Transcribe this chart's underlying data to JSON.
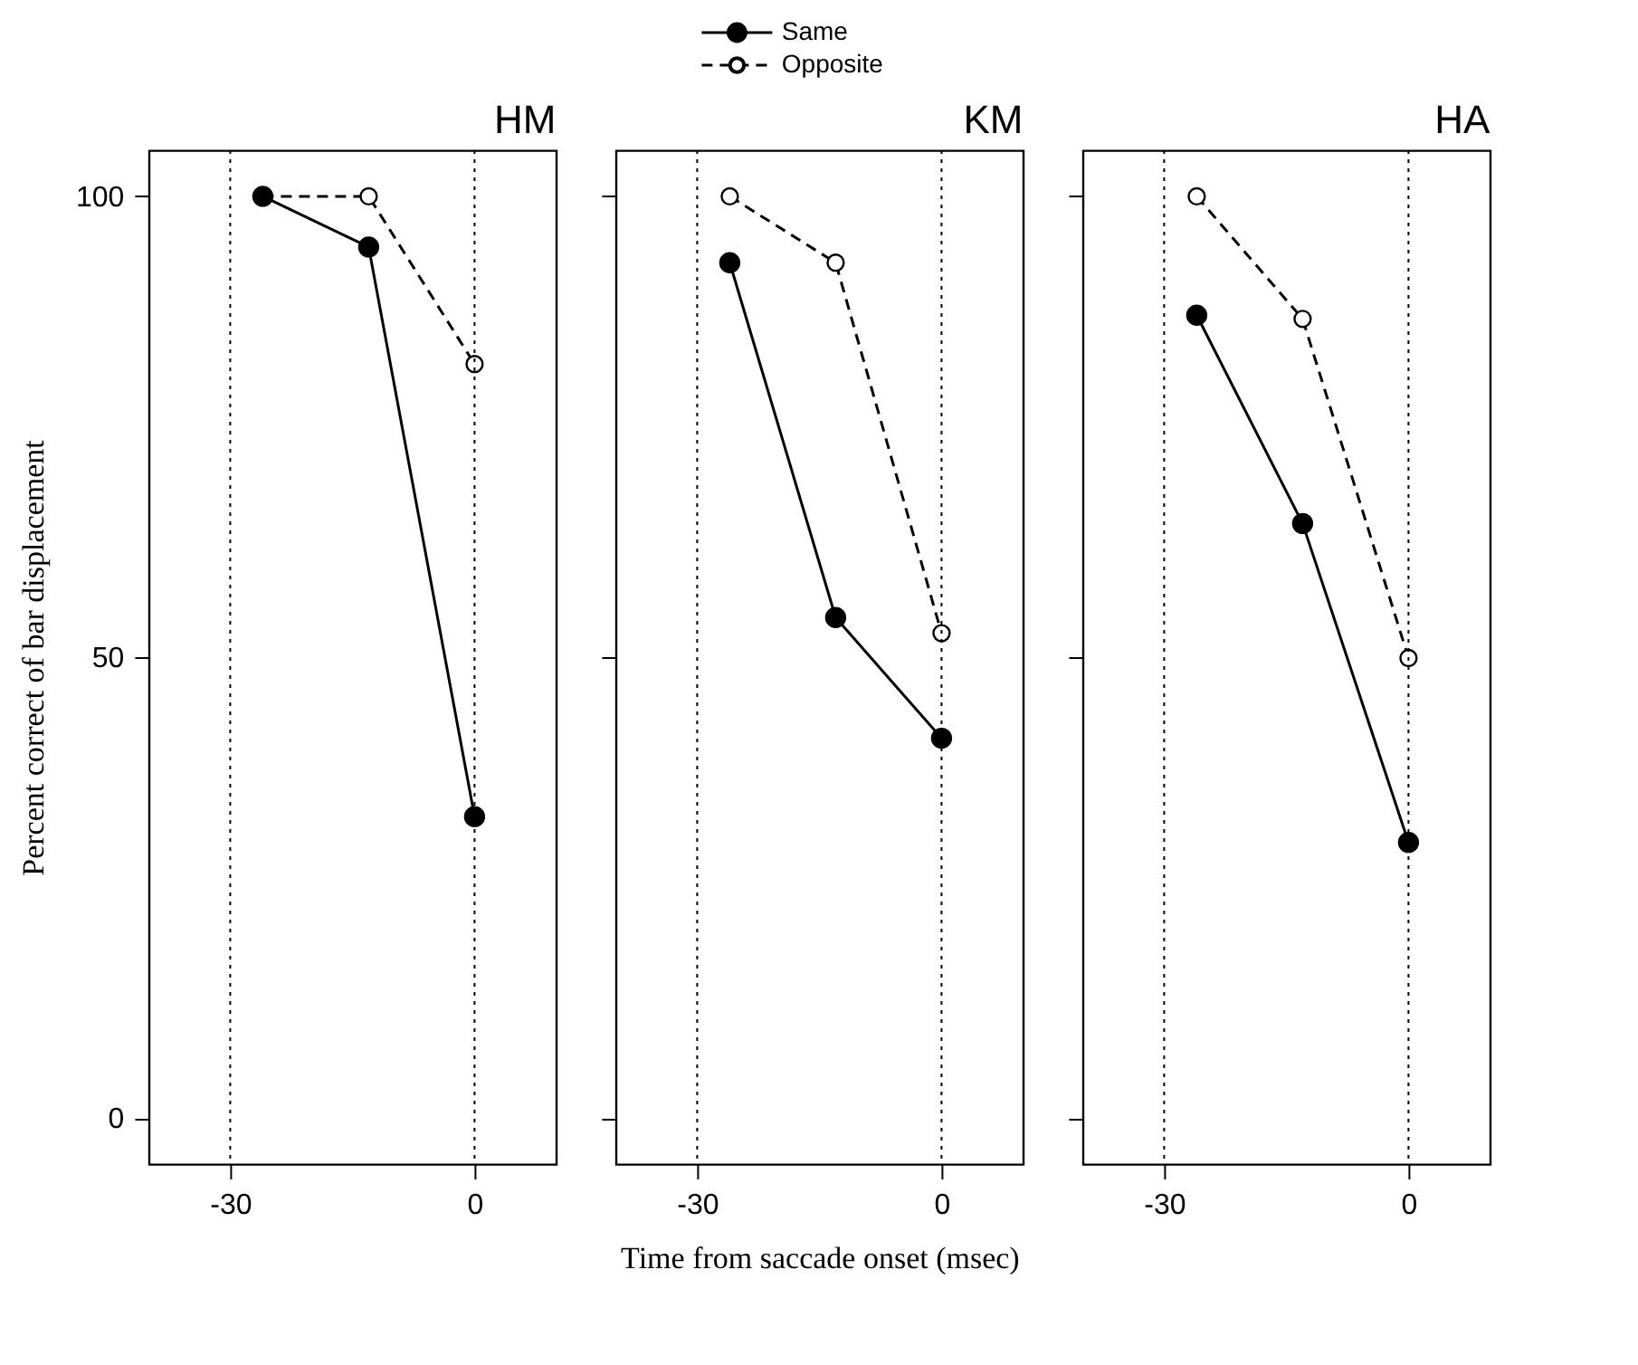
{
  "chart_data": [
    {
      "type": "line",
      "title": "HM",
      "ylabel": "Percent correct of bar displacement",
      "x": [
        -26,
        -13,
        0
      ],
      "xlim": [
        -40,
        10
      ],
      "xticks": [
        -30,
        0
      ],
      "ylim": [
        -5,
        105
      ],
      "yticks": [
        0,
        50,
        100
      ],
      "grid": false,
      "legend": "top",
      "marker": "circle",
      "series": [
        {
          "name": "Same",
          "color": "#000000",
          "line_style": "solid",
          "values": [
            100,
            94.5,
            32.7
          ]
        },
        {
          "name": "Opposite",
          "color": "#000000",
          "line_style": "dashed",
          "values": [
            100,
            100,
            81.8
          ]
        }
      ],
      "ref_lines": [
        {
          "axis": "x",
          "value": -30,
          "color": "#000000",
          "line_style": "dotted"
        },
        {
          "axis": "x",
          "value": 0,
          "color": "#000000",
          "line_style": "dotted"
        }
      ]
    },
    {
      "type": "line",
      "title": "KM",
      "xlabel": "Time from saccade onset (msec)",
      "x": [
        -26,
        -13,
        0
      ],
      "xlim": [
        -40,
        10
      ],
      "xticks": [
        -30,
        0
      ],
      "ylim": [
        -5,
        105
      ],
      "yticks": [
        0,
        50,
        100
      ],
      "grid": false,
      "marker": "circle",
      "tick_labels": "x",
      "series": [
        {
          "color": "#000000",
          "line_style": "solid",
          "values": [
            92.8,
            54.3,
            41.2
          ]
        },
        {
          "color": "#000000",
          "line_style": "dashed",
          "values": [
            100,
            92.8,
            52.6
          ]
        }
      ],
      "ref_lines": [
        {
          "axis": "x",
          "value": -30,
          "color": "#000000",
          "line_style": "dotted"
        },
        {
          "axis": "x",
          "value": 0,
          "color": "#000000",
          "line_style": "dotted"
        }
      ]
    },
    {
      "type": "line",
      "title": "HA",
      "x": [
        -26,
        -13,
        0
      ],
      "xlim": [
        -40,
        10
      ],
      "xticks": [
        -30,
        0
      ],
      "ylim": [
        -5,
        105
      ],
      "yticks": [
        0,
        50,
        100
      ],
      "grid": false,
      "marker": "circle",
      "tick_labels": "x",
      "series": [
        {
          "color": "#000000",
          "line_style": "solid",
          "values": [
            87.1,
            64.5,
            29.9
          ]
        },
        {
          "color": "#000000",
          "line_style": "dashed",
          "values": [
            100,
            86.7,
            49.9
          ]
        }
      ],
      "ref_lines": [
        {
          "axis": "x",
          "value": -30,
          "color": "#000000",
          "line_style": "dotted"
        },
        {
          "axis": "x",
          "value": 0,
          "color": "#000000",
          "line_style": "dotted"
        }
      ]
    }
  ]
}
